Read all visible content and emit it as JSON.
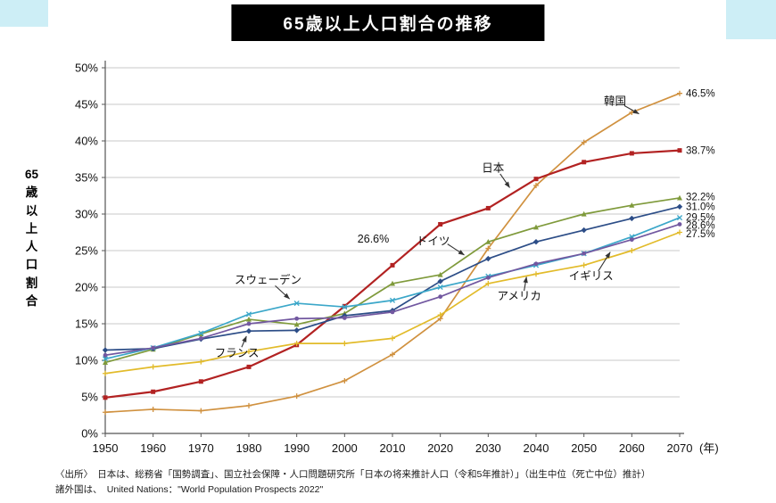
{
  "page": {
    "title": "65歳以上人口割合の推移",
    "source_line1": "〈出所〉　日本は、総務省「国勢調査」、国立社会保障・人口問題研究所「日本の将来推計人口（令和5年推計）」（出生中位（死亡中位）推計）",
    "source_line2": "諸外国は、　United Nations：\"World Population Prospects 2022\""
  },
  "chart_data": {
    "type": "line",
    "title": "65歳以上人口割合の推移",
    "ylabel": "65歳以上人口割合",
    "xlabel_suffix": "(年)",
    "grid": true,
    "legend": "none (in-chart annotations)",
    "ylim": [
      0,
      50
    ],
    "ytick_step": 5,
    "yticks": [
      "0%",
      "5%",
      "10%",
      "15%",
      "20%",
      "25%",
      "30%",
      "35%",
      "40%",
      "45%",
      "50%"
    ],
    "x": [
      1950,
      1960,
      1970,
      1980,
      1990,
      2000,
      2010,
      2020,
      2030,
      2040,
      2050,
      2060,
      2070
    ],
    "xticks": [
      "1950",
      "1960",
      "1970",
      "1980",
      "1990",
      "2000",
      "2010",
      "2020",
      "2030",
      "2040",
      "2050",
      "2060",
      "2070"
    ],
    "series": [
      {
        "name": "韓国",
        "color": "#d0913f",
        "marker": "plus",
        "width": 1.7,
        "values": [
          2.9,
          3.3,
          3.1,
          3.8,
          5.1,
          7.2,
          10.8,
          15.7,
          25.3,
          33.9,
          39.8,
          43.9,
          46.5
        ],
        "end_label": "46.5%",
        "label_y": 46.5
      },
      {
        "name": "日本",
        "color": "#b22222",
        "marker": "square",
        "width": 2.2,
        "values": [
          4.9,
          5.7,
          7.1,
          9.1,
          12.1,
          17.4,
          23.0,
          28.6,
          30.8,
          34.8,
          37.1,
          38.3,
          38.7
        ],
        "end_label": "38.7%",
        "label_y": 38.7
      },
      {
        "name": "ドイツ",
        "color": "#7f9a3b",
        "marker": "triangle",
        "width": 1.7,
        "values": [
          9.7,
          11.5,
          13.6,
          15.6,
          14.9,
          16.4,
          20.5,
          21.7,
          26.2,
          28.2,
          30.0,
          31.2,
          32.2
        ],
        "end_label": "32.2%",
        "label_y": 32.35
      },
      {
        "name": "フランス",
        "color": "#2c4d87",
        "marker": "diamond",
        "width": 1.7,
        "values": [
          11.4,
          11.6,
          12.9,
          14.0,
          14.1,
          16.1,
          16.8,
          20.8,
          23.9,
          26.2,
          27.8,
          29.4,
          31.0
        ],
        "end_label": "31.0%",
        "label_y": 31.05
      },
      {
        "name": "スウェーデン",
        "color": "#3ba7c9",
        "marker": "x",
        "width": 1.7,
        "values": [
          10.2,
          11.7,
          13.7,
          16.3,
          17.8,
          17.3,
          18.2,
          20.0,
          21.5,
          23.0,
          24.6,
          26.9,
          29.5
        ],
        "end_label": "29.5%",
        "label_y": 29.6
      },
      {
        "name": "イギリス",
        "color": "#7258a0",
        "marker": "circle",
        "width": 1.7,
        "values": [
          10.7,
          11.7,
          13.0,
          15.0,
          15.7,
          15.8,
          16.6,
          18.7,
          21.3,
          23.2,
          24.6,
          26.5,
          28.6
        ],
        "end_label": "28.6%",
        "label_y": 28.45
      },
      {
        "name": "アメリカ",
        "color": "#e2bb2a",
        "marker": "plus",
        "width": 1.7,
        "values": [
          8.2,
          9.1,
          9.8,
          11.2,
          12.3,
          12.3,
          13.0,
          16.2,
          20.5,
          21.8,
          23.0,
          25.0,
          27.5
        ],
        "end_label": "27.5%",
        "label_y": 27.3
      }
    ],
    "annotations": [
      {
        "text": "韓国",
        "x": 2056.5,
        "y": 45.4
      },
      {
        "text": "日本",
        "x": 2031,
        "y": 36.3
      },
      {
        "text": "ドイツ",
        "x": 2018.5,
        "y": 26.3
      },
      {
        "text": "26.6%",
        "x": 2006,
        "y": 26.6
      },
      {
        "text": "スウェーデン",
        "x": 1984,
        "y": 21.0
      },
      {
        "text": "フランス",
        "x": 1977.5,
        "y": 11.0
      },
      {
        "text": "イギリス",
        "x": 2051.5,
        "y": 21.5
      },
      {
        "text": "アメリカ",
        "x": 2036.5,
        "y": 18.8
      }
    ],
    "arrows": [
      {
        "x1": 2058.5,
        "y1": 44.8,
        "x2": 2061.5,
        "y2": 43.7
      },
      {
        "x1": 2032.5,
        "y1": 35.5,
        "x2": 2034.5,
        "y2": 33.6
      },
      {
        "x1": 2021.5,
        "y1": 25.9,
        "x2": 2025.0,
        "y2": 24.4
      },
      {
        "x1": 1985.5,
        "y1": 20.2,
        "x2": 1988.5,
        "y2": 18.4
      },
      {
        "x1": 1978.5,
        "y1": 11.8,
        "x2": 1979.5,
        "y2": 13.3
      },
      {
        "x1": 2053.0,
        "y1": 22.2,
        "x2": 2055.5,
        "y2": 24.8
      },
      {
        "x1": 2037.5,
        "y1": 19.5,
        "x2": 2038.0,
        "y2": 21.4
      }
    ]
  }
}
